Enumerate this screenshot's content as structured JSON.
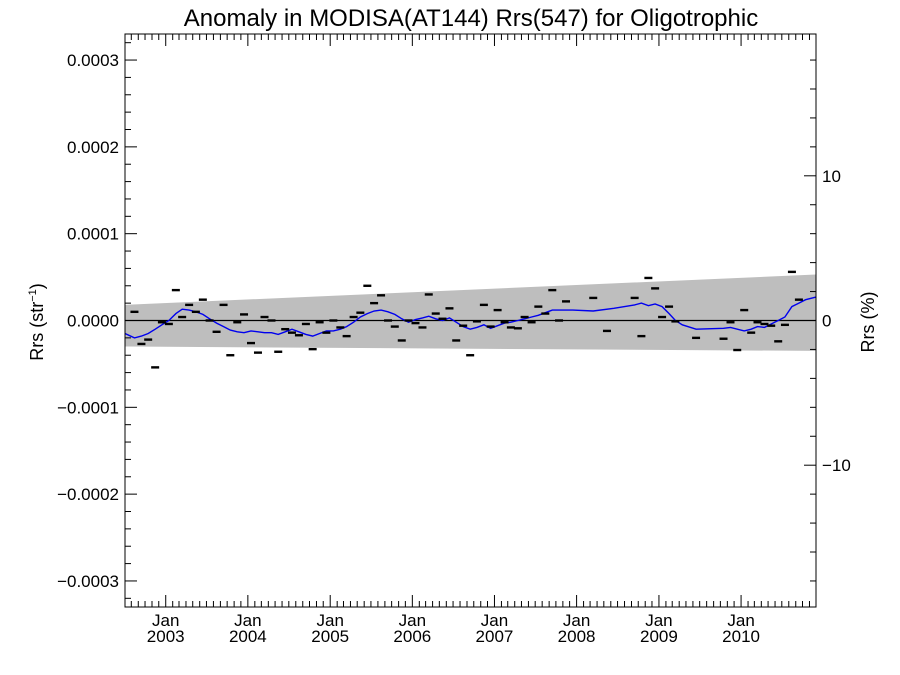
{
  "chart_data": {
    "type": "scatter",
    "title": "Anomaly in MODISA(AT144) Rrs(547) for Oligotrophic",
    "ylabel_left": "Rrs (str",
    "ylabel_left_sup": "−1",
    "ylabel_left_close": ")",
    "ylabel_right": "Rrs (%)",
    "x_range": [
      "2002-07-04",
      "2010-11-30"
    ],
    "ylim_left": [
      -0.00033,
      0.00033
    ],
    "ylim_right": [
      -19.8,
      19.8
    ],
    "grid": false,
    "x_ticks": [
      {
        "month": "Jan",
        "year": "2003",
        "date": "2003-01-01"
      },
      {
        "month": "Jan",
        "year": "2004",
        "date": "2004-01-01"
      },
      {
        "month": "Jan",
        "year": "2005",
        "date": "2005-01-01"
      },
      {
        "month": "Jan",
        "year": "2006",
        "date": "2006-01-01"
      },
      {
        "month": "Jan",
        "year": "2007",
        "date": "2007-01-01"
      },
      {
        "month": "Jan",
        "year": "2008",
        "date": "2008-01-01"
      },
      {
        "month": "Jan",
        "year": "2009",
        "date": "2009-01-01"
      },
      {
        "month": "Jan",
        "year": "2010",
        "date": "2010-01-01"
      }
    ],
    "y_ticks_left": [
      {
        "value": 0.0003,
        "label": "0.0003"
      },
      {
        "value": 0.0002,
        "label": "0.0002"
      },
      {
        "value": 0.0001,
        "label": "0.0001"
      },
      {
        "value": 0.0,
        "label": "0.0000"
      },
      {
        "value": -0.0001,
        "label": "−0.0001"
      },
      {
        "value": -0.0002,
        "label": "−0.0002"
      },
      {
        "value": -0.0003,
        "label": "−0.0003"
      }
    ],
    "y_ticks_right": [
      {
        "value": 10,
        "label": "10"
      },
      {
        "value": 0,
        "label": "0"
      },
      {
        "value": -10,
        "label": "−10"
      }
    ],
    "uncertainty_band": {
      "color": "#bebebe",
      "upper": [
        [
          "2002-07-04",
          1.8e-05
        ],
        [
          "2010-11-30",
          5.3e-05
        ]
      ],
      "lower": [
        [
          "2002-07-04",
          -3e-05
        ],
        [
          "2010-11-30",
          -3.5e-05
        ]
      ]
    },
    "monthly_anomalies": {
      "color": "#000000",
      "points": [
        [
          "2002-08-15",
          1e-05
        ],
        [
          "2002-09-15",
          -2.7e-05
        ],
        [
          "2002-10-15",
          -2.2e-05
        ],
        [
          "2002-11-15",
          -5.4e-05
        ],
        [
          "2002-12-15",
          -2e-06
        ],
        [
          "2003-01-15",
          -4e-06
        ],
        [
          "2003-02-15",
          3.5e-05
        ],
        [
          "2003-03-15",
          4e-06
        ],
        [
          "2003-04-15",
          1.8e-05
        ],
        [
          "2003-05-15",
          1e-05
        ],
        [
          "2003-06-15",
          2.4e-05
        ],
        [
          "2003-07-15",
          0.0
        ],
        [
          "2003-08-15",
          -1.3e-05
        ],
        [
          "2003-09-15",
          1.8e-05
        ],
        [
          "2003-10-15",
          -4e-05
        ],
        [
          "2003-11-15",
          -2e-06
        ],
        [
          "2003-12-15",
          7e-06
        ],
        [
          "2004-01-15",
          -2.6e-05
        ],
        [
          "2004-02-15",
          -3.7e-05
        ],
        [
          "2004-03-15",
          4e-06
        ],
        [
          "2004-04-15",
          0.0
        ],
        [
          "2004-05-15",
          -3.6e-05
        ],
        [
          "2004-06-15",
          -1e-05
        ],
        [
          "2004-07-15",
          -1.4e-05
        ],
        [
          "2004-08-15",
          -1.7e-05
        ],
        [
          "2004-09-15",
          -4e-06
        ],
        [
          "2004-10-15",
          -3.3e-05
        ],
        [
          "2004-11-15",
          -2e-06
        ],
        [
          "2004-12-15",
          -1.4e-05
        ],
        [
          "2005-01-15",
          0.0
        ],
        [
          "2005-02-15",
          -8e-06
        ],
        [
          "2005-03-15",
          -1.8e-05
        ],
        [
          "2005-04-15",
          4e-06
        ],
        [
          "2005-05-15",
          9e-06
        ],
        [
          "2005-06-15",
          4e-05
        ],
        [
          "2005-07-15",
          2e-05
        ],
        [
          "2005-08-15",
          2.9e-05
        ],
        [
          "2005-09-15",
          0.0
        ],
        [
          "2005-10-15",
          -7e-06
        ],
        [
          "2005-11-15",
          -2.3e-05
        ],
        [
          "2005-12-15",
          0.0
        ],
        [
          "2006-01-15",
          -3e-06
        ],
        [
          "2006-02-15",
          -8e-06
        ],
        [
          "2006-03-15",
          3e-05
        ],
        [
          "2006-04-15",
          8e-06
        ],
        [
          "2006-05-15",
          2e-06
        ],
        [
          "2006-06-15",
          1.4e-05
        ],
        [
          "2006-07-15",
          -2.3e-05
        ],
        [
          "2006-08-15",
          -6e-06
        ],
        [
          "2006-09-15",
          -4e-05
        ],
        [
          "2006-10-15",
          -1e-06
        ],
        [
          "2006-11-15",
          1.8e-05
        ],
        [
          "2006-12-15",
          -7e-06
        ],
        [
          "2007-01-15",
          1.2e-05
        ],
        [
          "2007-02-15",
          -2e-06
        ],
        [
          "2007-03-15",
          -8e-06
        ],
        [
          "2007-04-15",
          -9e-06
        ],
        [
          "2007-05-15",
          4e-06
        ],
        [
          "2007-06-15",
          -2e-06
        ],
        [
          "2007-07-15",
          1.6e-05
        ],
        [
          "2007-08-15",
          8e-06
        ],
        [
          "2007-09-15",
          3.5e-05
        ],
        [
          "2007-10-15",
          0.0
        ],
        [
          "2007-11-15",
          2.2e-05
        ],
        [
          "2008-03-15",
          2.6e-05
        ],
        [
          "2008-05-15",
          -1.2e-05
        ],
        [
          "2008-09-15",
          2.6e-05
        ],
        [
          "2008-10-15",
          -1.8e-05
        ],
        [
          "2008-11-15",
          4.9e-05
        ],
        [
          "2008-12-15",
          3.7e-05
        ],
        [
          "2009-01-15",
          4e-06
        ],
        [
          "2009-02-15",
          1.6e-05
        ],
        [
          "2009-03-15",
          -1e-06
        ],
        [
          "2009-06-15",
          -2e-05
        ],
        [
          "2009-10-15",
          -2.1e-05
        ],
        [
          "2009-11-15",
          -2e-06
        ],
        [
          "2009-12-15",
          -3.4e-05
        ],
        [
          "2010-01-15",
          1.2e-05
        ],
        [
          "2010-02-15",
          -1.4e-05
        ],
        [
          "2010-03-15",
          -2e-06
        ],
        [
          "2010-04-15",
          -4e-06
        ],
        [
          "2010-05-15",
          -6e-06
        ],
        [
          "2010-06-15",
          -2.4e-05
        ],
        [
          "2010-07-15",
          -5e-06
        ],
        [
          "2010-08-15",
          5.6e-05
        ],
        [
          "2010-09-15",
          2.4e-05
        ]
      ]
    },
    "running_mean": {
      "color": "#0000ee",
      "points": [
        [
          "2002-07-04",
          -1.5e-05
        ],
        [
          "2002-08-15",
          -2e-05
        ],
        [
          "2002-09-15",
          -1.8e-05
        ],
        [
          "2002-10-15",
          -1.5e-05
        ],
        [
          "2002-11-15",
          -1e-05
        ],
        [
          "2002-12-15",
          -5e-06
        ],
        [
          "2003-01-15",
          0.0
        ],
        [
          "2003-02-15",
          8e-06
        ],
        [
          "2003-03-15",
          1.3e-05
        ],
        [
          "2003-04-15",
          1.2e-05
        ],
        [
          "2003-05-15",
          1e-05
        ],
        [
          "2003-06-15",
          7e-06
        ],
        [
          "2003-07-15",
          2e-06
        ],
        [
          "2003-08-15",
          -3e-06
        ],
        [
          "2003-09-15",
          -7e-06
        ],
        [
          "2003-10-15",
          -1.1e-05
        ],
        [
          "2003-11-15",
          -1.3e-05
        ],
        [
          "2003-12-15",
          -1.4e-05
        ],
        [
          "2004-01-15",
          -1.2e-05
        ],
        [
          "2004-02-15",
          -1.3e-05
        ],
        [
          "2004-03-15",
          -1.4e-05
        ],
        [
          "2004-04-15",
          -1.4e-05
        ],
        [
          "2004-05-15",
          -1.6e-05
        ],
        [
          "2004-06-15",
          -1.3e-05
        ],
        [
          "2004-07-15",
          -1e-05
        ],
        [
          "2004-08-15",
          -1.3e-05
        ],
        [
          "2004-09-15",
          -1.6e-05
        ],
        [
          "2004-10-15",
          -1.8e-05
        ],
        [
          "2004-11-15",
          -1.5e-05
        ],
        [
          "2004-12-15",
          -1.2e-05
        ],
        [
          "2005-01-15",
          -1.2e-05
        ],
        [
          "2005-02-15",
          -1e-05
        ],
        [
          "2005-03-15",
          -7e-06
        ],
        [
          "2005-04-15",
          -2e-06
        ],
        [
          "2005-05-15",
          4e-06
        ],
        [
          "2005-06-15",
          8e-06
        ],
        [
          "2005-07-15",
          1.1e-05
        ],
        [
          "2005-08-15",
          1.2e-05
        ],
        [
          "2005-09-15",
          1e-05
        ],
        [
          "2005-10-15",
          7e-06
        ],
        [
          "2005-11-15",
          2e-06
        ],
        [
          "2005-12-15",
          -2e-06
        ],
        [
          "2006-01-15",
          1e-06
        ],
        [
          "2006-02-15",
          3e-06
        ],
        [
          "2006-03-15",
          5e-06
        ],
        [
          "2006-04-15",
          2e-06
        ],
        [
          "2006-05-15",
          0.0
        ],
        [
          "2006-06-15",
          3e-06
        ],
        [
          "2006-07-15",
          -2e-06
        ],
        [
          "2006-08-15",
          -7e-06
        ],
        [
          "2006-09-15",
          -1e-05
        ],
        [
          "2006-10-15",
          -8e-06
        ],
        [
          "2006-11-15",
          -5e-06
        ],
        [
          "2006-12-15",
          -9e-06
        ],
        [
          "2007-01-15",
          -6e-06
        ],
        [
          "2007-02-15",
          -3e-06
        ],
        [
          "2007-03-15",
          -2e-06
        ],
        [
          "2007-04-15",
          0.0
        ],
        [
          "2007-05-15",
          2e-06
        ],
        [
          "2007-06-15",
          4e-06
        ],
        [
          "2007-07-15",
          6e-06
        ],
        [
          "2007-08-15",
          9e-06
        ],
        [
          "2007-09-15",
          1.2e-05
        ],
        [
          "2007-10-15",
          1.2e-05
        ],
        [
          "2007-12-15",
          1.2e-05
        ],
        [
          "2008-03-15",
          1.1e-05
        ],
        [
          "2008-06-15",
          1.4e-05
        ],
        [
          "2008-09-15",
          1.8e-05
        ],
        [
          "2008-10-15",
          2e-05
        ],
        [
          "2008-11-15",
          1.7e-05
        ],
        [
          "2008-12-15",
          1.9e-05
        ],
        [
          "2009-01-15",
          1.6e-05
        ],
        [
          "2009-02-15",
          8e-06
        ],
        [
          "2009-03-15",
          0.0
        ],
        [
          "2009-04-15",
          -5e-06
        ],
        [
          "2009-06-15",
          -1e-05
        ],
        [
          "2009-10-15",
          -9e-06
        ],
        [
          "2009-11-15",
          -8e-06
        ],
        [
          "2010-01-15",
          -1.2e-05
        ],
        [
          "2010-02-15",
          -1e-05
        ],
        [
          "2010-03-15",
          -7e-06
        ],
        [
          "2010-04-15",
          -8e-06
        ],
        [
          "2010-05-15",
          -4e-06
        ],
        [
          "2010-06-15",
          0.0
        ],
        [
          "2010-07-15",
          4e-06
        ],
        [
          "2010-08-15",
          1.6e-05
        ],
        [
          "2010-09-15",
          2e-05
        ],
        [
          "2010-10-15",
          2.4e-05
        ],
        [
          "2010-11-30",
          2.7e-05
        ]
      ]
    },
    "zero_line": 0
  }
}
